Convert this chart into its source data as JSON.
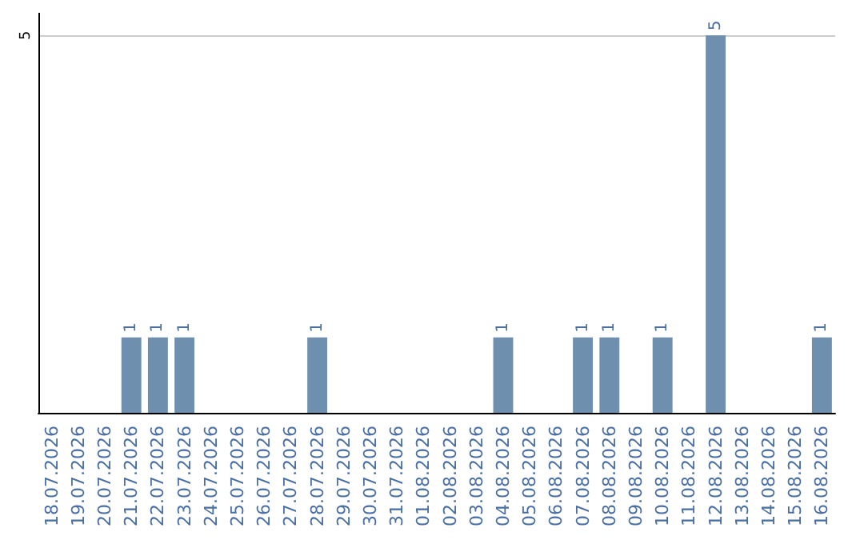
{
  "chart_data": {
    "type": "bar",
    "categories": [
      "18.07.2026",
      "19.07.2026",
      "20.07.2026",
      "21.07.2026",
      "22.07.2026",
      "23.07.2026",
      "24.07.2026",
      "25.07.2026",
      "26.07.2026",
      "27.07.2026",
      "28.07.2026",
      "29.07.2026",
      "30.07.2026",
      "31.07.2026",
      "01.08.2026",
      "02.08.2026",
      "03.08.2026",
      "04.08.2026",
      "05.08.2026",
      "06.08.2026",
      "07.08.2026",
      "08.08.2026",
      "09.08.2026",
      "10.08.2026",
      "11.08.2026",
      "12.08.2026",
      "13.08.2026",
      "14.08.2026",
      "15.08.2026",
      "16.08.2026"
    ],
    "values": [
      0,
      0,
      0,
      1,
      1,
      1,
      0,
      0,
      0,
      0,
      1,
      0,
      0,
      0,
      0,
      0,
      0,
      1,
      0,
      0,
      1,
      1,
      0,
      1,
      0,
      5,
      0,
      0,
      0,
      1
    ],
    "value_labels": [
      null,
      null,
      null,
      "1",
      "1",
      "1",
      null,
      null,
      null,
      null,
      "1",
      null,
      null,
      null,
      null,
      null,
      null,
      "1",
      null,
      null,
      "1",
      "1",
      null,
      "1",
      null,
      "5",
      null,
      null,
      null,
      "1"
    ],
    "color": "#6f8fae",
    "ylim": [
      0,
      5.3
    ],
    "yticks": [
      5
    ],
    "grid": "y"
  }
}
